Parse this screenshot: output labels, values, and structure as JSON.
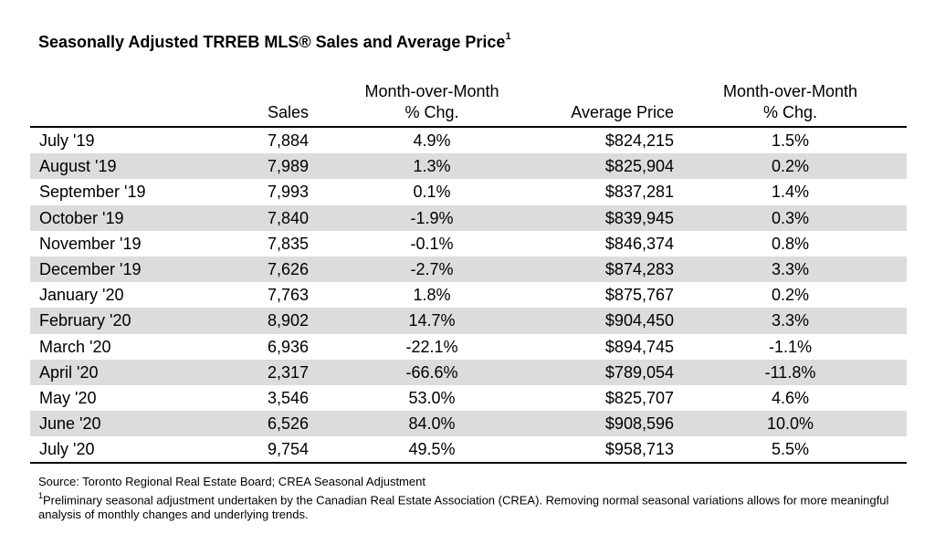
{
  "title": "Seasonally Adjusted TRREB MLS® Sales and Average Price",
  "title_footnote_marker": "1",
  "columns": {
    "month": "",
    "sales": "Sales",
    "mom1_line1": "Month-over-Month",
    "mom1_line2": "% Chg.",
    "price": "Average Price",
    "mom2_line1": "Month-over-Month",
    "mom2_line2": "% Chg."
  },
  "rows": [
    {
      "month": "July '19",
      "sales": "7,884",
      "sales_chg": "4.9%",
      "price": "$824,215",
      "price_chg": "1.5%"
    },
    {
      "month": "August '19",
      "sales": "7,989",
      "sales_chg": "1.3%",
      "price": "$825,904",
      "price_chg": "0.2%"
    },
    {
      "month": "September '19",
      "sales": "7,993",
      "sales_chg": "0.1%",
      "price": "$837,281",
      "price_chg": "1.4%"
    },
    {
      "month": "October '19",
      "sales": "7,840",
      "sales_chg": "-1.9%",
      "price": "$839,945",
      "price_chg": "0.3%"
    },
    {
      "month": "November '19",
      "sales": "7,835",
      "sales_chg": "-0.1%",
      "price": "$846,374",
      "price_chg": "0.8%"
    },
    {
      "month": "December '19",
      "sales": "7,626",
      "sales_chg": "-2.7%",
      "price": "$874,283",
      "price_chg": "3.3%"
    },
    {
      "month": "January '20",
      "sales": "7,763",
      "sales_chg": "1.8%",
      "price": "$875,767",
      "price_chg": "0.2%"
    },
    {
      "month": "February '20",
      "sales": "8,902",
      "sales_chg": "14.7%",
      "price": "$904,450",
      "price_chg": "3.3%"
    },
    {
      "month": "March '20",
      "sales": "6,936",
      "sales_chg": "-22.1%",
      "price": "$894,745",
      "price_chg": "-1.1%"
    },
    {
      "month": "April '20",
      "sales": "2,317",
      "sales_chg": "-66.6%",
      "price": "$789,054",
      "price_chg": "-11.8%"
    },
    {
      "month": "May '20",
      "sales": "3,546",
      "sales_chg": "53.0%",
      "price": "$825,707",
      "price_chg": "4.6%"
    },
    {
      "month": "June '20",
      "sales": "6,526",
      "sales_chg": "84.0%",
      "price": "$908,596",
      "price_chg": "10.0%"
    },
    {
      "month": "July '20",
      "sales": "9,754",
      "sales_chg": "49.5%",
      "price": "$958,713",
      "price_chg": "5.5%"
    }
  ],
  "notes": {
    "source": "Source: Toronto Regional Real Estate Board; CREA Seasonal Adjustment",
    "footnote_marker": "1",
    "footnote": "Preliminary seasonal adjustment undertaken by the Canadian Real Estate Association (CREA).  Removing normal seasonal variations allows for more meaningful analysis of monthly changes and underlying trends."
  },
  "colors": {
    "stripe": "#dcdcdc",
    "rule": "#000000"
  }
}
